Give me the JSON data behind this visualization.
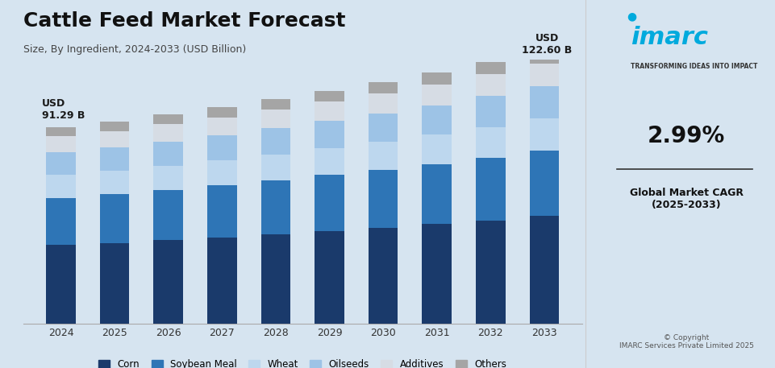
{
  "title": "Cattle Feed Market Forecast",
  "subtitle": "Size, By Ingredient, 2024-2033 (USD Billion)",
  "years": [
    2024,
    2025,
    2026,
    2027,
    2028,
    2029,
    2030,
    2031,
    2032,
    2033
  ],
  "categories": [
    "Corn",
    "Soybean Meal",
    "Wheat",
    "Oilseeds",
    "Additives",
    "Others"
  ],
  "colors": [
    "#1a3a6b",
    "#2e75b6",
    "#bdd7ee",
    "#9dc3e6",
    "#d6dce4",
    "#a5a5a5"
  ],
  "data": {
    "Corn": [
      36.5,
      37.5,
      38.8,
      40.0,
      41.5,
      43.0,
      44.5,
      46.2,
      48.0,
      50.0
    ],
    "Soybean Meal": [
      22.0,
      22.6,
      23.4,
      24.2,
      25.1,
      26.0,
      27.0,
      28.0,
      29.2,
      30.5
    ],
    "Wheat": [
      10.5,
      10.8,
      11.2,
      11.6,
      12.0,
      12.5,
      13.0,
      13.5,
      14.1,
      14.7
    ],
    "Oilseeds": [
      10.5,
      10.8,
      11.2,
      11.6,
      12.1,
      12.6,
      13.1,
      13.7,
      14.3,
      15.0
    ],
    "Additives": [
      7.5,
      7.7,
      8.0,
      8.3,
      8.6,
      8.9,
      9.3,
      9.7,
      10.1,
      10.6
    ],
    "Others": [
      4.29,
      4.4,
      4.6,
      4.8,
      5.0,
      5.2,
      5.4,
      5.7,
      5.9,
      1.8
    ]
  },
  "totals": [
    91.29,
    93.8,
    97.2,
    100.5,
    104.3,
    108.2,
    112.3,
    116.8,
    121.6,
    122.6
  ],
  "annotation_first": "USD\n91.29 B",
  "annotation_last": "USD\n122.60 B",
  "bg_color": "#d6e4f0",
  "right_panel_bg": "#f0f4f8",
  "cagr_text": "2.99%",
  "cagr_label": "Global Market CAGR\n(2025-2033)",
  "copyright_text": "© Copyright\nIMARC Services Private Limited 2025",
  "ylim": [
    0,
    140
  ]
}
